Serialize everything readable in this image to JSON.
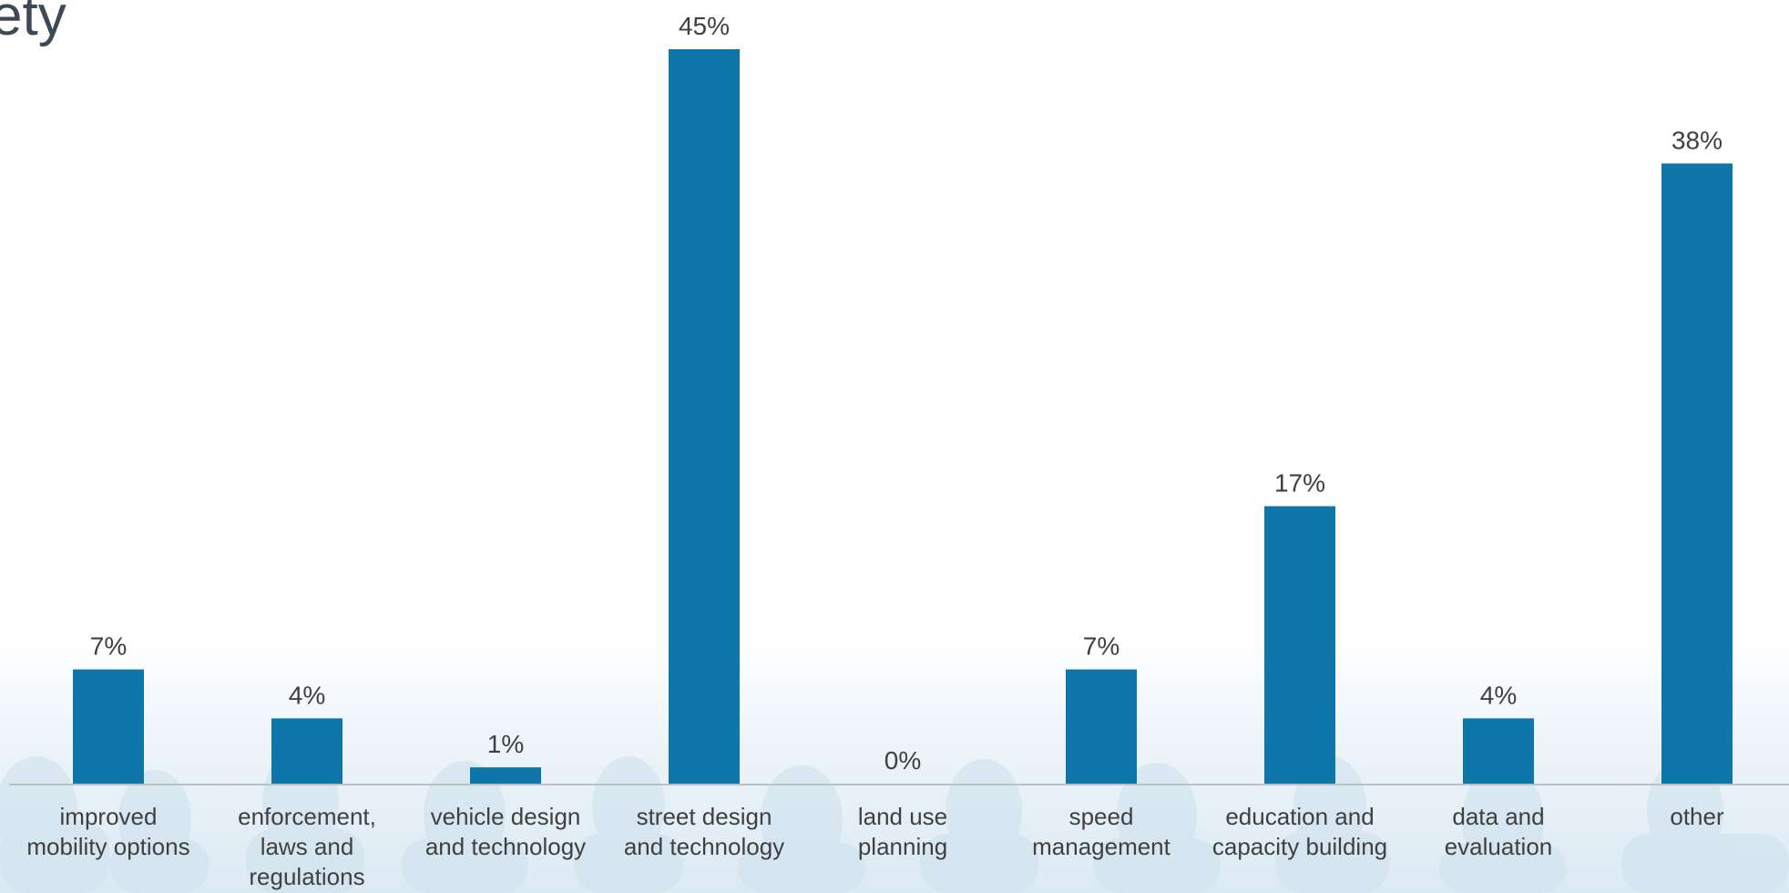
{
  "page_title": "ety",
  "chart_data": {
    "type": "bar",
    "title": "",
    "xlabel": "",
    "ylabel": "",
    "ylim": [
      0,
      45
    ],
    "grid": false,
    "legend": "none",
    "bar_color": "#0e76a8",
    "categories": [
      [
        "improved",
        "mobility options"
      ],
      [
        "enforcement,",
        "laws and",
        "regulations"
      ],
      [
        "vehicle design",
        "and technology"
      ],
      [
        "street design",
        "and technology"
      ],
      [
        "land use",
        "planning"
      ],
      [
        "speed",
        "management"
      ],
      [
        "education and",
        "capacity building"
      ],
      [
        "data and",
        "evaluation"
      ],
      [
        "other"
      ]
    ],
    "values": [
      7,
      4,
      1,
      45,
      0,
      7,
      17,
      4,
      38
    ],
    "value_labels": [
      "7%",
      "4%",
      "1%",
      "45%",
      "0%",
      "7%",
      "17%",
      "4%",
      "38%"
    ]
  }
}
